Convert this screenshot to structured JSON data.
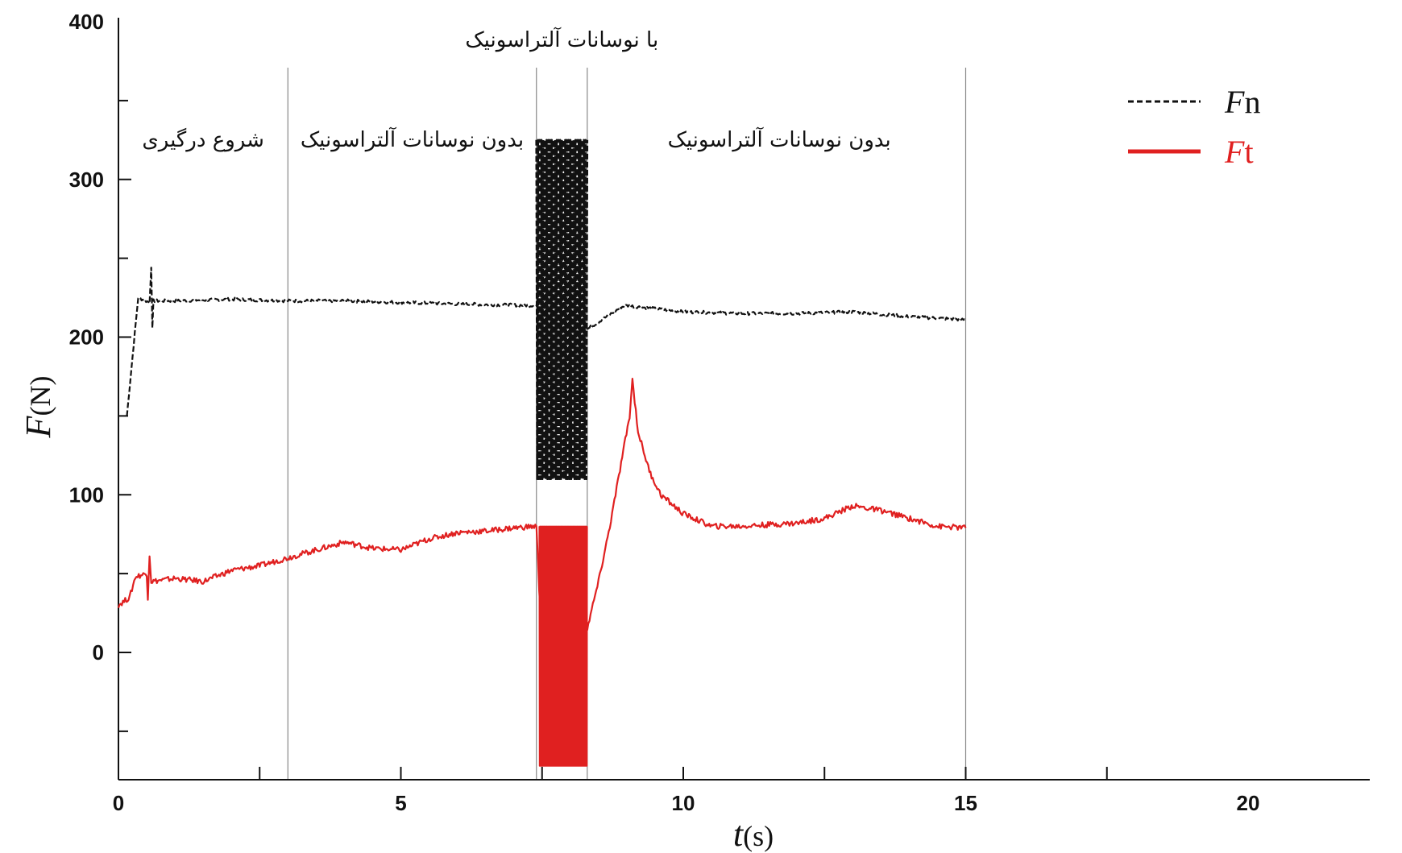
{
  "chart_data": {
    "type": "line",
    "xlabel": {
      "var": "t",
      "unit": "(s)"
    },
    "ylabel": {
      "var": "F",
      "unit": "(N)"
    },
    "xlim": [
      0,
      20
    ],
    "ylim": [
      -80,
      400
    ],
    "x_ticks": [
      0,
      5,
      10,
      15,
      20
    ],
    "y_ticks": [
      0,
      100,
      200,
      300,
      400
    ],
    "grid": false,
    "legend_position": "top-right",
    "colors": {
      "Fn": "#111111",
      "Ft": "#e02020",
      "divider": "#888888"
    },
    "region_dividers": [
      3.0,
      7.4,
      8.3,
      15.0
    ],
    "region_labels": [
      {
        "text": "شروع درگیری",
        "x_center": 1.5,
        "level": "lower"
      },
      {
        "text": "بدون نوسانات آلتراسونیک",
        "x_center": 5.2,
        "level": "lower"
      },
      {
        "text": "با نوسانات آلتراسونیک",
        "x_center": 7.85,
        "level": "upper"
      },
      {
        "text": "بدون نوسانات آلتراسونیک",
        "x_center": 11.7,
        "level": "lower"
      }
    ],
    "series": [
      {
        "name": "Fn",
        "legend": {
          "var": "F",
          "sub": "n"
        },
        "style": "dashed",
        "points": [
          [
            0.15,
            150
          ],
          [
            0.35,
            225
          ],
          [
            0.55,
            222
          ],
          [
            0.58,
            245
          ],
          [
            0.6,
            205
          ],
          [
            0.62,
            223
          ],
          [
            1,
            223
          ],
          [
            2,
            224
          ],
          [
            3,
            223
          ],
          [
            4,
            223
          ],
          [
            5,
            222
          ],
          [
            6,
            221
          ],
          [
            7.4,
            220
          ]
        ],
        "oscillation": {
          "x_start": 7.4,
          "x_end": 8.3,
          "low": 110,
          "high": 325
        },
        "points_after": [
          [
            8.3,
            205
          ],
          [
            8.9,
            219
          ],
          [
            9.0,
            220
          ],
          [
            10,
            216
          ],
          [
            11,
            215
          ],
          [
            12,
            215
          ],
          [
            13,
            216
          ],
          [
            14,
            213
          ],
          [
            15,
            211
          ]
        ]
      },
      {
        "name": "Ft",
        "legend": {
          "var": "F",
          "sub": "t"
        },
        "style": "solid",
        "points": [
          [
            0,
            30
          ],
          [
            0.2,
            35
          ],
          [
            0.3,
            48
          ],
          [
            0.5,
            50
          ],
          [
            0.52,
            35
          ],
          [
            0.55,
            62
          ],
          [
            0.58,
            45
          ],
          [
            0.8,
            46
          ],
          [
            1,
            47
          ],
          [
            1.5,
            45
          ],
          [
            2,
            52
          ],
          [
            2.5,
            55
          ],
          [
            3,
            60
          ],
          [
            3.5,
            65
          ],
          [
            4,
            70
          ],
          [
            4.5,
            66
          ],
          [
            5,
            65
          ],
          [
            5.5,
            72
          ],
          [
            6,
            76
          ],
          [
            6.5,
            77
          ],
          [
            7,
            79
          ],
          [
            7.4,
            80
          ],
          [
            7.45,
            40
          ],
          [
            7.5,
            10
          ]
        ],
        "oscillation": {
          "x_start": 7.45,
          "x_end": 8.3,
          "low": -72,
          "high": 80
        },
        "points_after": [
          [
            8.3,
            15
          ],
          [
            8.5,
            45
          ],
          [
            8.7,
            80
          ],
          [
            8.9,
            120
          ],
          [
            9.05,
            150
          ],
          [
            9.1,
            173
          ],
          [
            9.2,
            140
          ],
          [
            9.4,
            115
          ],
          [
            9.6,
            100
          ],
          [
            10,
            88
          ],
          [
            10.5,
            80
          ],
          [
            11,
            80
          ],
          [
            12,
            82
          ],
          [
            12.5,
            85
          ],
          [
            13,
            93
          ],
          [
            13.5,
            90
          ],
          [
            14,
            85
          ],
          [
            14.5,
            80
          ],
          [
            15,
            79
          ]
        ]
      }
    ]
  }
}
